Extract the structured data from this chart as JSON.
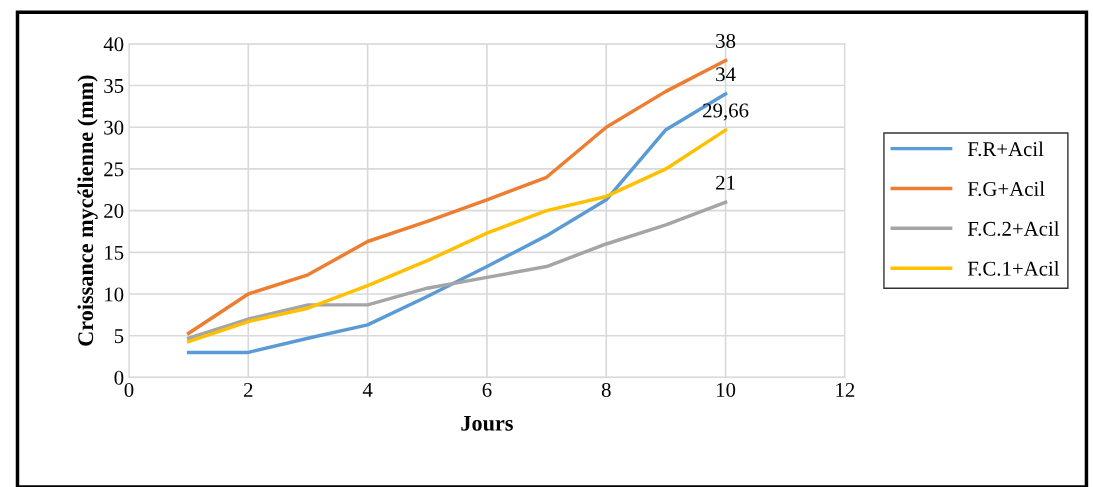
{
  "chart_data": {
    "type": "line",
    "xlabel": "Jours",
    "ylabel": "Croissance mycélienne (mm)",
    "x": [
      1,
      2,
      3,
      4,
      5,
      6,
      7,
      8,
      9,
      10
    ],
    "xlim": [
      0,
      12
    ],
    "xticks": [
      0,
      2,
      4,
      6,
      8,
      10,
      12
    ],
    "ylim": [
      0,
      40
    ],
    "yticks": [
      0,
      5,
      10,
      15,
      20,
      25,
      30,
      35,
      40
    ],
    "grid": true,
    "legend": "right",
    "marker": "none",
    "line_style": "solid",
    "series": [
      {
        "name": "F.R+Acil",
        "color": "#5b9bd5",
        "values": [
          3,
          3,
          4.7,
          6.3,
          9.7,
          13.3,
          17,
          21.3,
          29.7,
          34
        ],
        "value_labels": [
          null,
          null,
          null,
          null,
          null,
          null,
          null,
          null,
          null,
          "34"
        ]
      },
      {
        "name": "F.G+Acil",
        "color": "#ed7d31",
        "values": [
          5.3,
          10,
          12.3,
          16.3,
          18.7,
          21.3,
          24,
          30,
          34.3,
          38
        ],
        "value_labels": [
          null,
          null,
          null,
          null,
          null,
          null,
          null,
          null,
          null,
          "38"
        ]
      },
      {
        "name": "F.C.2+Acil",
        "color": "#a5a5a5",
        "values": [
          4.7,
          7,
          8.7,
          8.7,
          10.7,
          12,
          13.3,
          16,
          18.3,
          21
        ],
        "value_labels": [
          null,
          null,
          null,
          null,
          null,
          null,
          null,
          null,
          null,
          "21"
        ]
      },
      {
        "name": "F.C.1+Acil",
        "color": "#ffc000",
        "values": [
          4.3,
          6.7,
          8.3,
          11,
          14,
          17.3,
          20,
          21.7,
          25,
          29.66
        ],
        "value_labels": [
          null,
          null,
          null,
          null,
          null,
          null,
          null,
          null,
          null,
          "29,66"
        ]
      }
    ]
  }
}
